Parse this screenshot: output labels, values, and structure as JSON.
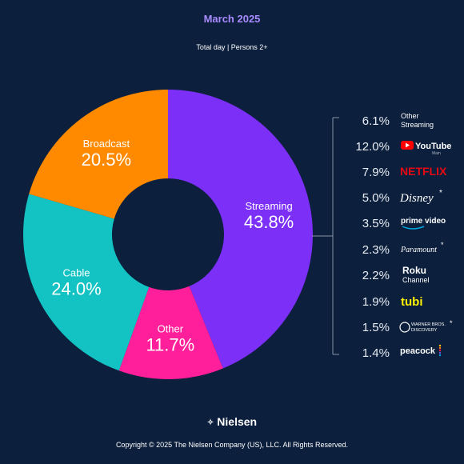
{
  "header": {
    "title": "March 2025",
    "subtitle": "Total day | Persons 2+"
  },
  "chart_data": {
    "type": "pie",
    "title": "March 2025",
    "subtitle": "Total day | Persons 2+",
    "segments": [
      {
        "name": "Streaming",
        "value": 43.8,
        "label": "43.8%",
        "color": "#7b2ff7"
      },
      {
        "name": "Other",
        "value": 11.7,
        "label": "11.7%",
        "color": "#ff1f9a"
      },
      {
        "name": "Cable",
        "value": 24.0,
        "label": "24.0%",
        "color": "#13c2c2"
      },
      {
        "name": "Broadcast",
        "value": 20.5,
        "label": "20.5%",
        "color": "#ff8a00"
      }
    ],
    "streaming_breakdown": [
      {
        "service": "Other Streaming",
        "value": 6.1,
        "label": "6.1%"
      },
      {
        "service": "YouTube Main",
        "value": 12.0,
        "label": "12.0%"
      },
      {
        "service": "Netflix",
        "value": 7.9,
        "label": "7.9%"
      },
      {
        "service": "Disney*",
        "value": 5.0,
        "label": "5.0%"
      },
      {
        "service": "prime video",
        "value": 3.5,
        "label": "3.5%"
      },
      {
        "service": "Paramount*",
        "value": 2.3,
        "label": "2.3%"
      },
      {
        "service": "Roku Channel",
        "value": 2.2,
        "label": "2.2%"
      },
      {
        "service": "tubi",
        "value": 1.9,
        "label": "1.9%"
      },
      {
        "service": "Warner Bros. Discovery*",
        "value": 1.5,
        "label": "1.5%"
      },
      {
        "service": "peacock",
        "value": 1.4,
        "label": "1.4%"
      }
    ]
  },
  "logos": {
    "other_streaming_line1": "Other",
    "other_streaming_line2": "Streaming",
    "youtube": "YouTube",
    "youtube_sub": "Main",
    "netflix": "NETFLIX",
    "disney": "Disney",
    "prime": "prime video",
    "paramount": "Paramount",
    "roku_line1": "Roku",
    "roku_line2": "Channel",
    "tubi": "tubi",
    "wbd_line1": "WARNER BROS.",
    "wbd_line2": "DISCOVERY",
    "peacock": "peacock",
    "asterisk": "*"
  },
  "footer": {
    "brand": "Nielsen",
    "copyright": "Copyright © 2025 The Nielsen Company (US), LLC. All Rights Reserved."
  },
  "colors": {
    "background": "#0c1f3c",
    "title": "#a98bff",
    "streaming": "#7b2ff7",
    "other": "#ff1f9a",
    "cable": "#13c2c2",
    "broadcast": "#ff8a00",
    "youtube_red": "#ff0000",
    "netflix_red": "#e50914",
    "tubi_yellow": "#fff200",
    "prime_blue": "#00a8e1"
  }
}
